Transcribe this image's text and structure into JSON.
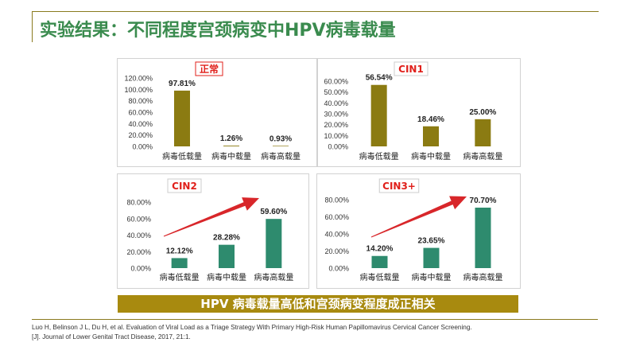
{
  "title": "实验结果：不同程度宫颈病变中HPV病毒载量",
  "conclusion": "HPV 病毒载量高低和宫颈病变程度成正相关",
  "reference": "Luo H, Belinson J L, Du H, et al. Evaluation of Viral Load as a Triage Strategy With Primary High-Risk Human Papillomavirus Cervical Cancer Screening.[J]. Journal of Lower Genital Tract Disease, 2017, 21:1.",
  "colors": {
    "gold": "#8b7b12",
    "teal": "#2e8b6e",
    "label_red": "#e0201b",
    "arrow": "#d8262a",
    "title_green": "#3a8b4e",
    "banner": "#a88a0f"
  },
  "chart_data": [
    {
      "type": "bar",
      "title": "正常",
      "categories": [
        "病毒低载量",
        "病毒中载量",
        "病毒高载量"
      ],
      "values": [
        97.81,
        1.26,
        0.93
      ],
      "labels": [
        "97.81%",
        "1.26%",
        "0.93%"
      ],
      "ylim": [
        0,
        120
      ],
      "yticks": [
        "0.00%",
        "20.00%",
        "40.00%",
        "60.00%",
        "80.00%",
        "100.00%",
        "120.00%"
      ],
      "color": "#8b7b12",
      "arrow": false
    },
    {
      "type": "bar",
      "title": "CIN1",
      "categories": [
        "病毒低载量",
        "病毒中载量",
        "病毒高载量"
      ],
      "values": [
        56.54,
        18.46,
        25.0
      ],
      "labels": [
        "56.54%",
        "18.46%",
        "25.00%"
      ],
      "ylim": [
        0,
        60
      ],
      "yticks": [
        "0.00%",
        "10.00%",
        "20.00%",
        "30.00%",
        "40.00%",
        "50.00%",
        "60.00%"
      ],
      "color": "#8b7b12",
      "arrow": false
    },
    {
      "type": "bar",
      "title": "CIN2",
      "categories": [
        "病毒低载量",
        "病毒中载量",
        "病毒高载量"
      ],
      "values": [
        12.12,
        28.28,
        59.6
      ],
      "labels": [
        "12.12%",
        "28.28%",
        "59.60%"
      ],
      "ylim": [
        0,
        80
      ],
      "yticks": [
        "0.00%",
        "20.00%",
        "40.00%",
        "60.00%",
        "80.00%"
      ],
      "color": "#2e8b6e",
      "arrow": true
    },
    {
      "type": "bar",
      "title": "CIN3+",
      "categories": [
        "病毒低载量",
        "病毒中载量",
        "病毒高载量"
      ],
      "values": [
        14.2,
        23.65,
        70.7
      ],
      "labels": [
        "14.20%",
        "23.65%",
        "70.70%"
      ],
      "ylim": [
        0,
        80
      ],
      "yticks": [
        "0.00%",
        "20.00%",
        "40.00%",
        "60.00%",
        "80.00%"
      ],
      "color": "#2e8b6e",
      "arrow": true
    }
  ]
}
